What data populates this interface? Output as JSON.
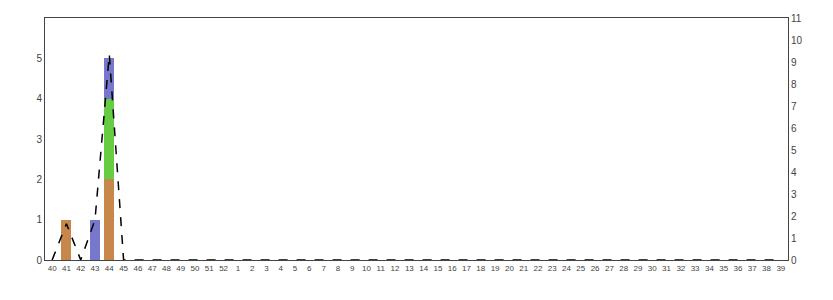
{
  "chart_data": {
    "type": "bar",
    "stacked": true,
    "categories": [
      "40",
      "41",
      "42",
      "43",
      "44",
      "45",
      "46",
      "47",
      "48",
      "49",
      "50",
      "51",
      "52",
      "1",
      "2",
      "3",
      "4",
      "5",
      "6",
      "7",
      "8",
      "9",
      "10",
      "11",
      "12",
      "13",
      "14",
      "15",
      "16",
      "17",
      "18",
      "19",
      "20",
      "21",
      "22",
      "23",
      "24",
      "25",
      "26",
      "27",
      "28",
      "29",
      "30",
      "31",
      "32",
      "33",
      "34",
      "35",
      "36",
      "37",
      "38",
      "39"
    ],
    "series": [
      {
        "color": "#c8874a",
        "values": [
          0,
          1,
          0,
          0,
          2,
          0,
          0,
          0,
          0,
          0,
          0,
          0,
          0,
          0,
          0,
          0,
          0,
          0,
          0,
          0,
          0,
          0,
          0,
          0,
          0,
          0,
          0,
          0,
          0,
          0,
          0,
          0,
          0,
          0,
          0,
          0,
          0,
          0,
          0,
          0,
          0,
          0,
          0,
          0,
          0,
          0,
          0,
          0,
          0,
          0,
          0,
          0
        ]
      },
      {
        "color": "#66cc44",
        "values": [
          0,
          0,
          0,
          0,
          2,
          0,
          0,
          0,
          0,
          0,
          0,
          0,
          0,
          0,
          0,
          0,
          0,
          0,
          0,
          0,
          0,
          0,
          0,
          0,
          0,
          0,
          0,
          0,
          0,
          0,
          0,
          0,
          0,
          0,
          0,
          0,
          0,
          0,
          0,
          0,
          0,
          0,
          0,
          0,
          0,
          0,
          0,
          0,
          0,
          0,
          0,
          0
        ]
      },
      {
        "color": "#7777cc",
        "values": [
          0,
          0,
          0,
          1,
          1,
          0,
          0,
          0,
          0,
          0,
          0,
          0,
          0,
          0,
          0,
          0,
          0,
          0,
          0,
          0,
          0,
          0,
          0,
          0,
          0,
          0,
          0,
          0,
          0,
          0,
          0,
          0,
          0,
          0,
          0,
          0,
          0,
          0,
          0,
          0,
          0,
          0,
          0,
          0,
          0,
          0,
          0,
          0,
          0,
          0,
          0,
          0
        ]
      },
      {
        "type": "line",
        "line_style": "dashed",
        "color": "#000000",
        "values": [
          0,
          0.9,
          0,
          1.0,
          5.1,
          0,
          0,
          0,
          0,
          0,
          0,
          0,
          0,
          0,
          0,
          0,
          0,
          0,
          0,
          0,
          0,
          0,
          0,
          0,
          0,
          0,
          0,
          0,
          0,
          0,
          0,
          0,
          0,
          0,
          0,
          0,
          0,
          0,
          0,
          0,
          0,
          0,
          0,
          0,
          0,
          0,
          0,
          0,
          0,
          0,
          0,
          0
        ]
      }
    ],
    "ylim": [
      0,
      6
    ],
    "yticks": [
      0,
      1,
      2,
      3,
      4,
      5
    ],
    "y2lim": [
      0,
      11
    ],
    "y2ticks": [
      0,
      1,
      2,
      3,
      4,
      5,
      6,
      7,
      8,
      9,
      10,
      11
    ],
    "grid": false
  }
}
